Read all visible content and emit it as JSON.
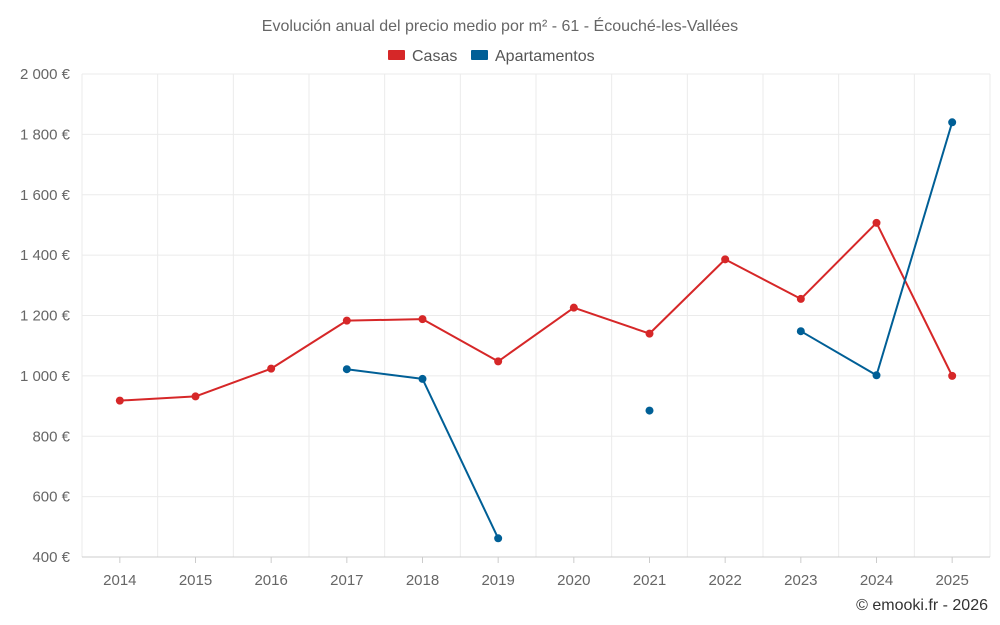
{
  "chart_data": {
    "type": "line",
    "title": "Evolución anual del precio medio por m² - 61 - Écouché-les-Vallées",
    "categories": [
      "2014",
      "2015",
      "2016",
      "2017",
      "2018",
      "2019",
      "2020",
      "2021",
      "2022",
      "2023",
      "2024",
      "2025"
    ],
    "series": [
      {
        "name": "Casas",
        "color": "#d62728",
        "values": [
          918,
          932,
          1024,
          1183,
          1188,
          1048,
          1226,
          1140,
          1386,
          1255,
          1507,
          1000
        ]
      },
      {
        "name": "Apartamentos",
        "color": "#005f96",
        "values": [
          null,
          null,
          null,
          1022,
          990,
          462,
          null,
          885,
          null,
          1148,
          1002,
          1840
        ]
      }
    ],
    "ylim": [
      400,
      2000
    ],
    "yticks": [
      400,
      600,
      800,
      1000,
      1200,
      1400,
      1600,
      1800,
      2000
    ],
    "ytick_labels": [
      "400 €",
      "600 €",
      "800 €",
      "1 000 €",
      "1 200 €",
      "1 400 €",
      "1 600 €",
      "1 800 €",
      "2 000 €"
    ],
    "xlabel": "",
    "ylabel": "",
    "grid": true,
    "legend": "top-center"
  },
  "credit": "© emooki.fr - 2026"
}
